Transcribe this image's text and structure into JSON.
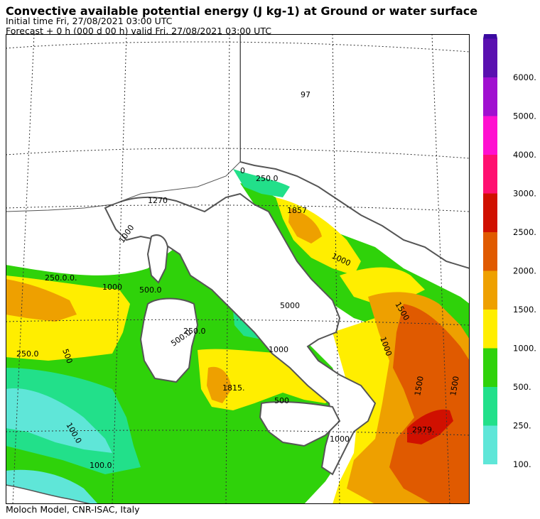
{
  "header": {
    "title": "Convective available potential energy (J kg-1) at Ground or water surface",
    "initial_time": "Initial time  Fri, 27/08/2021  03:00 UTC",
    "forecast": "Forecast  +   0 h  (000 d 00 h)  valid Fri, 27/08/2021 03:00 UTC"
  },
  "footer": {
    "credit": "Moloch Model, CNR-ISAC, Italy"
  },
  "colorbar": {
    "levels": [
      {
        "label": "100.",
        "color": "#5fe6d8"
      },
      {
        "label": "250.",
        "color": "#22e08a"
      },
      {
        "label": "500.",
        "color": "#2fd20a"
      },
      {
        "label": "1000.",
        "color": "#ffee00"
      },
      {
        "label": "1500.",
        "color": "#eea000"
      },
      {
        "label": "2000.",
        "color": "#e05a00"
      },
      {
        "label": "2500.",
        "color": "#d01000"
      },
      {
        "label": "3000.",
        "color": "#ff1070"
      },
      {
        "label": "4000.",
        "color": "#ff10d0"
      },
      {
        "label": "5000.",
        "color": "#a010d0"
      },
      {
        "label": "6000.",
        "color": "#5a10b0"
      }
    ],
    "extend_color": "#3a0aa0"
  },
  "map_labels": {
    "l97": "97",
    "l250a": "250.0",
    "l250b": "250.0.0.",
    "l250c": "250.0",
    "l500a": "500.0",
    "l500b": "500",
    "l1000a": "1000",
    "l1000b": "1000",
    "l1000c": "1000",
    "l1000d": "1000",
    "l1000e": "1000",
    "l1500a": "1500",
    "l1500b": "1500",
    "l1500c": "1500",
    "l1857": "1857",
    "l1815": "1815.",
    "l2979": "2979.",
    "l100a": "100.0",
    "l100b": "100.0",
    "l1270": "1270",
    "l5000": "5000",
    "l250d": "250.0",
    "l0": "0",
    "l500c": "500.0",
    "l500d": "500",
    "l1000f": "1000"
  }
}
